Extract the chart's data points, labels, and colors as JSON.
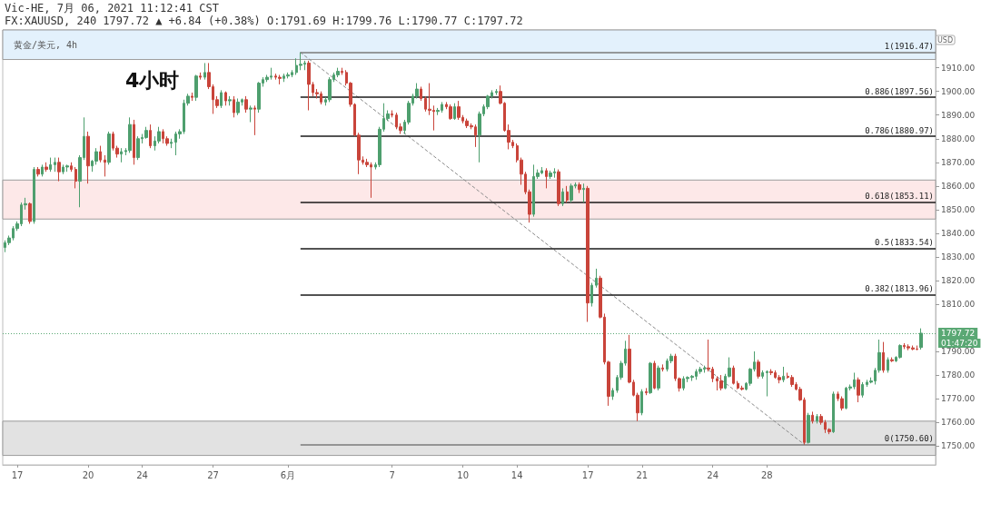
{
  "chart_data": {
    "type": "candlestick",
    "title": "4小时",
    "subtitle": "黄金/美元, 4h",
    "annotations": [
      "Vic-HE, 7月 06, 2021 11:12:41 CST",
      "FX:XAUUSD, 240 1797.72 ▲ +6.84 (+0.38%) O:1791.69 H:1799.76 L:1790.77 C:1797.72",
      "01:47:20"
    ],
    "categories": [
      null,
      null,
      null,
      "17",
      null,
      null,
      null,
      null,
      null,
      null,
      null,
      null,
      null,
      null,
      null,
      null,
      null,
      null,
      null,
      null,
      "20",
      null,
      null,
      null,
      null,
      null,
      null,
      null,
      null,
      null,
      null,
      null,
      null,
      "24",
      null,
      null,
      null,
      null,
      null,
      null,
      null,
      null,
      null,
      null,
      null,
      null,
      null,
      null,
      null,
      null,
      "27",
      null,
      null,
      null,
      null,
      null,
      null,
      null,
      null,
      null,
      null,
      null,
      null,
      null,
      null,
      null,
      null,
      null,
      "6月",
      null,
      null,
      null,
      null,
      null,
      null,
      null,
      null,
      null,
      null,
      null,
      null,
      null,
      null,
      null,
      null,
      null,
      null,
      null,
      null,
      null,
      null,
      null,
      null,
      "7",
      null,
      null,
      null,
      null,
      null,
      null,
      null,
      null,
      null,
      null,
      null,
      null,
      null,
      null,
      null,
      null,
      "10",
      null,
      null,
      null,
      null,
      null,
      null,
      null,
      null,
      null,
      null,
      null,
      null,
      "14",
      null,
      null,
      null,
      null,
      null,
      null,
      null,
      null,
      null,
      null,
      null,
      null,
      null,
      null,
      null,
      null,
      "17",
      null,
      null,
      null,
      null,
      null,
      null,
      null,
      null,
      null,
      null,
      null,
      null,
      "21",
      null,
      null,
      null,
      null,
      null,
      null,
      null,
      null,
      null,
      null,
      null,
      null,
      null,
      null,
      null,
      null,
      "24",
      null,
      null,
      null,
      null,
      null,
      null,
      null,
      null,
      null,
      null,
      null,
      null,
      "28",
      null,
      null,
      null,
      null,
      null,
      null,
      null,
      null,
      null,
      null,
      null,
      null,
      null,
      null,
      null,
      null,
      null,
      null,
      null,
      null,
      null,
      null,
      null,
      null,
      null,
      null,
      null,
      null,
      null,
      null,
      null,
      null,
      null,
      null,
      null,
      null,
      null
    ],
    "series": [
      {
        "type": "candlestick",
        "colors": [
          "#4e9f6e",
          "#4e9f6e",
          "#4e9f6e",
          "#4e9f6e",
          "#4e9f6e",
          "#4e9f6e",
          "#c9443a",
          "#4e9f6e",
          "#c9443a",
          "#4e9f6e",
          "#c9443a",
          "#4e9f6e",
          "#4e9f6e",
          "#c9443a",
          "#4e9f6e",
          "#4e9f6e",
          "#c9443a",
          "#c9443a",
          "#4e9f6e",
          "#4e9f6e",
          "#c9443a",
          "#4e9f6e",
          "#4e9f6e",
          "#c9443a",
          "#c9443a",
          "#4e9f6e",
          "#c9443a",
          "#c9443a",
          "#4e9f6e",
          "#4e9f6e",
          "#4e9f6e",
          "#c9443a",
          "#4e9f6e",
          "#4e9f6e",
          "#4e9f6e",
          "#c9443a",
          "#4e9f6e",
          "#4e9f6e",
          "#c9443a",
          "#c9443a",
          "#4e9f6e",
          "#4e9f6e",
          "#4e9f6e",
          "#4e9f6e",
          "#4e9f6e",
          "#c9443a",
          "#4e9f6e",
          "#c9443a",
          "#4e9f6e",
          "#c9443a",
          "#c9443a",
          "#c9443a",
          "#4e9f6e",
          "#c9443a",
          "#4e9f6e",
          "#c9443a",
          "#4e9f6e",
          "#4e9f6e",
          "#c9443a",
          "#4e9f6e",
          "#c9443a",
          "#4e9f6e",
          "#4e9f6e",
          "#4e9f6e",
          "#4e9f6e",
          "#c9443a",
          "#c9443a",
          "#4e9f6e",
          "#4e9f6e",
          "#4e9f6e",
          "#4e9f6e",
          "#4e9f6e",
          "#4e9f6e",
          "#c9443a",
          "#c9443a",
          "#c9443a",
          "#c9443a",
          "#4e9f6e",
          "#4e9f6e",
          "#4e9f6e",
          "#4e9f6e",
          "#c9443a",
          "#c9443a",
          "#c9443a",
          "#c9443a",
          "#c9443a",
          "#c9443a",
          "#c9443a",
          "#c9443a",
          "#4e9f6e",
          "#4e9f6e",
          "#4e9f6e",
          "#4e9f6e",
          "#c9443a",
          "#c9443a",
          "#c9443a",
          "#4e9f6e",
          "#4e9f6e",
          "#4e9f6e",
          "#4e9f6e",
          "#c9443a",
          "#c9443a",
          "#c9443a",
          "#c9443a",
          "#4e9f6e",
          "#4e9f6e",
          "#c9443a",
          "#c9443a",
          "#4e9f6e",
          "#c9443a",
          "#c9443a",
          "#c9443a",
          "#c9443a",
          "#c9443a",
          "#4e9f6e",
          "#4e9f6e",
          "#4e9f6e",
          "#4e9f6e",
          "#4e9f6e",
          "#c9443a",
          "#c9443a",
          "#c9443a",
          "#c9443a",
          "#c9443a",
          "#c9443a",
          "#c9443a",
          "#c9443a",
          "#4e9f6e",
          "#4e9f6e",
          "#4e9f6e",
          "#c9443a",
          "#4e9f6e",
          "#4e9f6e",
          "#c9443a",
          "#4e9f6e",
          "#c9443a",
          "#4e9f6e",
          "#4e9f6e",
          "#c9443a",
          "#4e9f6e",
          "#c9443a",
          "#4e9f6e",
          "#4e9f6e",
          "#c9443a",
          "#c9443a",
          "#c9443a",
          "#4e9f6e",
          "#4e9f6e",
          "#4e9f6e",
          "#4e9f6e",
          "#c9443a",
          "#c9443a",
          "#c9443a",
          "#4e9f6e",
          "#c9443a",
          "#4e9f6e",
          "#c9443a",
          "#4e9f6e",
          "#c9443a",
          "#4e9f6e",
          "#4e9f6e",
          "#c9443a",
          "#c9443a",
          "#4e9f6e",
          "#4e9f6e",
          "#4e9f6e",
          "#4e9f6e",
          "#4e9f6e",
          "#4e9f6e",
          "#c9443a",
          "#c9443a",
          "#c9443a",
          "#c9443a",
          "#4e9f6e",
          "#4e9f6e",
          "#c9443a",
          "#c9443a",
          "#c9443a",
          "#4e9f6e",
          "#4e9f6e",
          "#4e9f6e",
          "#c9443a",
          "#4e9f6e",
          "#4e9f6e",
          "#c9443a",
          "#c9443a",
          "#c9443a",
          "#4e9f6e",
          "#c9443a",
          "#c9443a",
          "#c9443a",
          "#c9443a",
          "#c9443a",
          "#4e9f6e",
          "#c9443a",
          "#4e9f6e",
          "#c9443a",
          "#c9443a",
          "#c9443a",
          "#4e9f6e",
          "#c9443a",
          "#c9443a",
          "#4e9f6e",
          "#4e9f6e",
          "#4e9f6e",
          "#c9443a",
          "#4e9f6e",
          "#4e9f6e",
          "#4e9f6e",
          "#4e9f6e",
          "#4e9f6e",
          "#c9443a",
          "#4e9f6e",
          "#c9443a",
          "#4e9f6e",
          "#4e9f6e",
          "#c9443a",
          "#c9443a",
          "#c9443a",
          "#c9443a",
          "#4e9f6e"
        ],
        "ohlc": [
          [
            1834,
            1837,
            1832,
            1836
          ],
          [
            1836,
            1839,
            1835,
            1838
          ],
          [
            1838,
            1843,
            1837,
            1842
          ],
          [
            1842,
            1845,
            1841,
            1844
          ],
          [
            1844,
            1853,
            1843,
            1852
          ],
          [
            1852,
            1855,
            1850,
            1852.5
          ],
          [
            1852.5,
            1853,
            1844,
            1845
          ],
          [
            1845,
            1868,
            1844,
            1867
          ],
          [
            1867,
            1868,
            1864,
            1865
          ],
          [
            1865,
            1869,
            1864,
            1868
          ],
          [
            1868,
            1870,
            1866,
            1867
          ],
          [
            1867,
            1872,
            1866,
            1869
          ],
          [
            1869,
            1872,
            1866,
            1870
          ],
          [
            1870,
            1872,
            1862,
            1866
          ],
          [
            1866,
            1869,
            1865,
            1868
          ],
          [
            1868,
            1869,
            1866,
            1868.5
          ],
          [
            1868.5,
            1870,
            1866,
            1867
          ],
          [
            1867,
            1868,
            1859,
            1862
          ],
          [
            1862,
            1873,
            1851,
            1872
          ],
          [
            1872,
            1889,
            1871,
            1881
          ],
          [
            1881,
            1883,
            1861,
            1868.5
          ],
          [
            1868.5,
            1871,
            1866,
            1870.5
          ],
          [
            1870.5,
            1876,
            1869,
            1874.5
          ],
          [
            1874.5,
            1877,
            1870,
            1871
          ],
          [
            1871,
            1873,
            1864,
            1870
          ],
          [
            1870,
            1883,
            1869,
            1882
          ],
          [
            1882,
            1883,
            1875,
            1876
          ],
          [
            1876,
            1877,
            1872,
            1873.5
          ],
          [
            1873.5,
            1876,
            1870,
            1874.5
          ],
          [
            1874.5,
            1876,
            1873,
            1875
          ],
          [
            1875,
            1889,
            1874,
            1886
          ],
          [
            1886,
            1888,
            1869,
            1872
          ],
          [
            1872,
            1881,
            1871,
            1880
          ],
          [
            1880,
            1882,
            1878,
            1880.5
          ],
          [
            1880.5,
            1885,
            1880,
            1883.5
          ],
          [
            1883.5,
            1886,
            1876,
            1877
          ],
          [
            1877,
            1881,
            1875,
            1879
          ],
          [
            1879,
            1885,
            1878,
            1883
          ],
          [
            1883,
            1884,
            1878,
            1880
          ],
          [
            1880,
            1881,
            1877,
            1878
          ],
          [
            1878,
            1880,
            1876,
            1878.5
          ],
          [
            1878.5,
            1883,
            1873,
            1882
          ],
          [
            1882,
            1884,
            1880,
            1883
          ],
          [
            1883,
            1896.5,
            1882,
            1895
          ],
          [
            1895,
            1899,
            1894,
            1898
          ],
          [
            1898,
            1899.5,
            1896,
            1897.5
          ],
          [
            1897.5,
            1907,
            1896,
            1906.5
          ],
          [
            1906.5,
            1908,
            1905,
            1906
          ],
          [
            1906,
            1912,
            1905,
            1908
          ],
          [
            1908,
            1912,
            1901,
            1902
          ],
          [
            1902,
            1903,
            1890.5,
            1896.5
          ],
          [
            1896.5,
            1898,
            1893,
            1894
          ],
          [
            1894,
            1900.5,
            1893,
            1899.5
          ],
          [
            1899.5,
            1900,
            1894,
            1896
          ],
          [
            1896,
            1898,
            1894,
            1896.5
          ],
          [
            1896.5,
            1898,
            1889,
            1891
          ],
          [
            1891,
            1897,
            1890,
            1895.5
          ],
          [
            1895.5,
            1897,
            1894,
            1896.5
          ],
          [
            1896.5,
            1898,
            1891,
            1892.5
          ],
          [
            1892.5,
            1894,
            1887,
            1893
          ],
          [
            1893,
            1894,
            1881.5,
            1892.5
          ],
          [
            1892.5,
            1904,
            1891,
            1903.5
          ],
          [
            1903.5,
            1906,
            1902,
            1905
          ],
          [
            1905,
            1907,
            1904,
            1906
          ],
          [
            1906,
            1910,
            1905,
            1906.5
          ],
          [
            1906.5,
            1907.5,
            1905,
            1906
          ],
          [
            1906,
            1907,
            1903,
            1905.5
          ],
          [
            1905.5,
            1907.5,
            1904,
            1906.5
          ],
          [
            1906.5,
            1908,
            1905.5,
            1907
          ],
          [
            1907,
            1909,
            1906,
            1908
          ],
          [
            1908,
            1914,
            1907,
            1911
          ],
          [
            1911,
            1916.47,
            1909,
            1911.5
          ],
          [
            1911.5,
            1913,
            1909,
            1912
          ],
          [
            1912,
            1913,
            1892,
            1903
          ],
          [
            1903,
            1904,
            1898,
            1899.5
          ],
          [
            1899.5,
            1901,
            1897,
            1899
          ],
          [
            1899,
            1900,
            1894.5,
            1895.5
          ],
          [
            1895.5,
            1897.5,
            1894,
            1896.5
          ],
          [
            1896.5,
            1906,
            1895.5,
            1905
          ],
          [
            1905,
            1908,
            1904,
            1907
          ],
          [
            1907,
            1910,
            1906,
            1908.5
          ],
          [
            1908.5,
            1910,
            1907,
            1908
          ],
          [
            1908,
            1909,
            1902.5,
            1903.5
          ],
          [
            1903.5,
            1904,
            1893.5,
            1894.5
          ],
          [
            1894.5,
            1895,
            1881,
            1881.5
          ],
          [
            1881.5,
            1882.5,
            1865,
            1871
          ],
          [
            1871,
            1872.5,
            1869,
            1870
          ],
          [
            1870,
            1871.5,
            1868,
            1869
          ],
          [
            1869,
            1870,
            1855,
            1868
          ],
          [
            1868,
            1870,
            1867,
            1869
          ],
          [
            1869,
            1885,
            1868,
            1884
          ],
          [
            1884,
            1895,
            1883,
            1888.5
          ],
          [
            1888.5,
            1892,
            1887.5,
            1890.5
          ],
          [
            1890.5,
            1892,
            1889,
            1890
          ],
          [
            1890,
            1891,
            1884,
            1885
          ],
          [
            1885,
            1886.5,
            1882,
            1883.5
          ],
          [
            1883.5,
            1888,
            1882,
            1887
          ],
          [
            1887,
            1896,
            1886,
            1895
          ],
          [
            1895,
            1899,
            1894,
            1898
          ],
          [
            1898,
            1903.5,
            1897,
            1901
          ],
          [
            1901,
            1902,
            1896,
            1897
          ],
          [
            1897,
            1898,
            1891.5,
            1892.5
          ],
          [
            1892.5,
            1903.5,
            1890,
            1892
          ],
          [
            1892,
            1894,
            1883.5,
            1891.5
          ],
          [
            1891.5,
            1893,
            1890,
            1892
          ],
          [
            1892,
            1895.5,
            1891,
            1894.5
          ],
          [
            1894.5,
            1895.5,
            1892.5,
            1893.5
          ],
          [
            1893.5,
            1894.5,
            1888,
            1888.5
          ],
          [
            1888.5,
            1895,
            1888,
            1893.5
          ],
          [
            1893.5,
            1896,
            1888,
            1889
          ],
          [
            1889,
            1890,
            1886.5,
            1887.5
          ],
          [
            1887.5,
            1888.5,
            1884.5,
            1885.5
          ],
          [
            1885.5,
            1886.5,
            1884,
            1885
          ],
          [
            1885,
            1886,
            1876.5,
            1881.5
          ],
          [
            1881.5,
            1891.5,
            1870,
            1890.5
          ],
          [
            1890.5,
            1894.5,
            1889.5,
            1893.5
          ],
          [
            1893.5,
            1898.5,
            1892.5,
            1898
          ],
          [
            1898,
            1900.5,
            1897,
            1899.5
          ],
          [
            1899.5,
            1901,
            1898.5,
            1900
          ],
          [
            1900,
            1902.5,
            1894.5,
            1895
          ],
          [
            1895,
            1895.5,
            1883,
            1883.5
          ],
          [
            1883.5,
            1886,
            1875.5,
            1878.5
          ],
          [
            1878.5,
            1879.5,
            1876,
            1877
          ],
          [
            1877,
            1878,
            1870,
            1871
          ],
          [
            1871,
            1872,
            1860.5,
            1865
          ],
          [
            1865,
            1866,
            1856.5,
            1857.5
          ],
          [
            1857.5,
            1858.5,
            1844.5,
            1848
          ],
          [
            1848,
            1869,
            1847,
            1864
          ],
          [
            1864,
            1867,
            1863,
            1865.5
          ],
          [
            1865.5,
            1868,
            1865,
            1866.5
          ],
          [
            1866.5,
            1867.5,
            1859,
            1864
          ],
          [
            1864,
            1866.5,
            1863,
            1865.5
          ],
          [
            1865.5,
            1867.5,
            1863.5,
            1866
          ],
          [
            1866,
            1867,
            1851.5,
            1852.5
          ],
          [
            1852.5,
            1859,
            1851.5,
            1857.5
          ],
          [
            1857.5,
            1860,
            1853,
            1854
          ],
          [
            1854,
            1861,
            1853,
            1860
          ],
          [
            1860,
            1861.5,
            1859,
            1860.5
          ],
          [
            1860.5,
            1861.5,
            1857,
            1858.5
          ],
          [
            1858.5,
            1861,
            1853,
            1859
          ],
          [
            1859,
            1860,
            1802.5,
            1810.5
          ],
          [
            1810.5,
            1819,
            1809,
            1818
          ],
          [
            1818,
            1825,
            1817,
            1821
          ],
          [
            1821,
            1822,
            1804,
            1804.5
          ],
          [
            1804.5,
            1806,
            1784.5,
            1785.5
          ],
          [
            1785.5,
            1786,
            1767,
            1771
          ],
          [
            1771,
            1774.5,
            1769.5,
            1773.5
          ],
          [
            1773.5,
            1780,
            1772.5,
            1779
          ],
          [
            1779,
            1786,
            1778,
            1785
          ],
          [
            1785,
            1794.5,
            1784,
            1791
          ],
          [
            1791,
            1797,
            1776.5,
            1777
          ],
          [
            1777,
            1778,
            1771,
            1771.5
          ],
          [
            1771.5,
            1772.5,
            1760.5,
            1764
          ],
          [
            1764,
            1774,
            1763,
            1773
          ],
          [
            1773,
            1774.5,
            1771.5,
            1772.5
          ],
          [
            1772.5,
            1785.5,
            1772,
            1785
          ],
          [
            1785,
            1786,
            1774,
            1774.5
          ],
          [
            1774.5,
            1784,
            1773.5,
            1783
          ],
          [
            1783,
            1784.5,
            1781.5,
            1782.5
          ],
          [
            1782.5,
            1787,
            1781.5,
            1786
          ],
          [
            1786,
            1789,
            1785,
            1788
          ],
          [
            1788,
            1789,
            1777.5,
            1778.5
          ],
          [
            1778.5,
            1779,
            1773,
            1774.5
          ],
          [
            1774.5,
            1779.5,
            1773.5,
            1778.5
          ],
          [
            1778.5,
            1779.5,
            1777,
            1779
          ],
          [
            1779,
            1780,
            1777.5,
            1779.5
          ],
          [
            1779.5,
            1782.5,
            1778,
            1781.5
          ],
          [
            1781.5,
            1783.5,
            1780.5,
            1782.5
          ],
          [
            1782.5,
            1784,
            1781,
            1783
          ],
          [
            1783,
            1795,
            1781.5,
            1782.5
          ],
          [
            1782.5,
            1783.5,
            1777,
            1778.5
          ],
          [
            1778.5,
            1779.5,
            1773.5,
            1777.5
          ],
          [
            1777.5,
            1780,
            1773.5,
            1774.5
          ],
          [
            1774.5,
            1780.5,
            1774,
            1779.5
          ],
          [
            1779.5,
            1787.5,
            1779,
            1783
          ],
          [
            1783,
            1784,
            1776,
            1776.5
          ],
          [
            1776.5,
            1777.5,
            1774,
            1774.5
          ],
          [
            1774.5,
            1775.5,
            1773.5,
            1774
          ],
          [
            1774,
            1777,
            1773.5,
            1776.5
          ],
          [
            1776.5,
            1783,
            1775.5,
            1782.5
          ],
          [
            1782.5,
            1790,
            1781.5,
            1785.5
          ],
          [
            1785.5,
            1786.5,
            1778.5,
            1779.5
          ],
          [
            1779.5,
            1782,
            1778.5,
            1781
          ],
          [
            1781,
            1782,
            1771,
            1781.5
          ],
          [
            1781.5,
            1782.5,
            1780,
            1781
          ],
          [
            1781,
            1782,
            1778.5,
            1779
          ],
          [
            1779,
            1780,
            1776.5,
            1778
          ],
          [
            1778,
            1783.5,
            1777,
            1779.5
          ],
          [
            1779.5,
            1781,
            1778.5,
            1779
          ],
          [
            1779,
            1780,
            1775,
            1776
          ],
          [
            1776,
            1777,
            1773.5,
            1774
          ],
          [
            1774,
            1775,
            1769,
            1769.5
          ],
          [
            1769.5,
            1770.5,
            1750.6,
            1751.5
          ],
          [
            1751.5,
            1764,
            1751,
            1763
          ],
          [
            1763,
            1764.5,
            1759.5,
            1760.5
          ],
          [
            1760.5,
            1763.5,
            1759.5,
            1762.5
          ],
          [
            1762.5,
            1763.5,
            1759,
            1760
          ],
          [
            1760,
            1761,
            1755.5,
            1757
          ],
          [
            1757,
            1757.5,
            1755,
            1756
          ],
          [
            1756,
            1773,
            1755.5,
            1772
          ],
          [
            1772,
            1773,
            1769,
            1770
          ],
          [
            1770,
            1771,
            1765,
            1766
          ],
          [
            1766,
            1775,
            1765.5,
            1774.5
          ],
          [
            1774.5,
            1776,
            1773.5,
            1775
          ],
          [
            1775,
            1781,
            1774,
            1778
          ],
          [
            1778,
            1779,
            1768.5,
            1771.5
          ],
          [
            1771.5,
            1777,
            1770.5,
            1776
          ],
          [
            1776,
            1778,
            1775,
            1777
          ],
          [
            1777,
            1779,
            1776.5,
            1777.5
          ],
          [
            1777.5,
            1783,
            1776,
            1782
          ],
          [
            1782,
            1795,
            1781,
            1789.5
          ],
          [
            1789.5,
            1794,
            1781,
            1782
          ],
          [
            1782,
            1787.5,
            1781,
            1786.5
          ],
          [
            1786.5,
            1787.5,
            1785.5,
            1786
          ],
          [
            1786,
            1788,
            1785.5,
            1787.5
          ],
          [
            1787.5,
            1793,
            1787,
            1792.5
          ],
          [
            1792.5,
            1793.5,
            1791,
            1792
          ],
          [
            1792,
            1793,
            1790.5,
            1791.5
          ],
          [
            1791.5,
            1792.5,
            1790.5,
            1791
          ],
          [
            1791,
            1792.5,
            1790.5,
            1790.9
          ],
          [
            1791.69,
            1799.76,
            1790.77,
            1797.72
          ]
        ]
      },
      {
        "type": "line",
        "color": "#8a8a8a",
        "line_style": "dashed",
        "marker": "none",
        "values": [
          null,
          null,
          null,
          null,
          null,
          null,
          null,
          null,
          null,
          null,
          null,
          null,
          null,
          null,
          null,
          null,
          null,
          null,
          null,
          null,
          null,
          null,
          null,
          null,
          null,
          null,
          null,
          null,
          null,
          null,
          null,
          null,
          null,
          null,
          null,
          null,
          null,
          null,
          null,
          null,
          null,
          null,
          null,
          null,
          null,
          null,
          null,
          null,
          null,
          null,
          null,
          null,
          null,
          null,
          null,
          null,
          null,
          null,
          null,
          null,
          null,
          null,
          null,
          null,
          null,
          null,
          null,
          null,
          null,
          null,
          null,
          1916.5,
          null,
          null,
          null,
          null,
          null,
          null,
          null,
          null,
          null,
          null,
          null,
          null,
          null,
          null,
          null,
          null,
          null,
          null,
          null,
          null,
          null,
          null,
          null,
          null,
          null,
          null,
          null,
          null,
          null,
          null,
          null,
          null,
          null,
          null,
          null,
          null,
          null,
          null,
          null,
          null,
          null,
          null,
          null,
          null,
          null,
          null,
          null,
          null,
          null,
          null,
          null,
          null,
          null,
          null,
          null,
          null,
          null,
          null,
          null,
          null,
          null,
          null,
          null,
          null,
          null,
          null,
          null,
          null,
          null,
          null,
          null,
          null,
          null,
          null,
          null,
          null,
          null,
          null,
          null,
          null,
          null,
          null,
          null,
          null,
          null,
          null,
          null,
          null,
          null,
          null,
          null,
          null,
          null,
          null,
          null,
          null,
          null,
          null,
          null,
          null,
          null,
          null,
          null,
          null,
          null,
          null,
          null,
          null,
          null,
          null,
          null,
          null,
          null,
          null,
          null,
          null,
          null,
          null,
          null,
          null,
          1750.6,
          null,
          null,
          null,
          null,
          null,
          null,
          null,
          null,
          null,
          null,
          null,
          null,
          null,
          null,
          null,
          null,
          null,
          null,
          null,
          null,
          null,
          null,
          null,
          null,
          null,
          null,
          null,
          null
        ]
      }
    ],
    "ylabel": "USD",
    "ylim": [
      1742,
      1926
    ],
    "yticks": [
      {
        "value": 1750,
        "label": "1750.00"
      },
      {
        "value": 1760,
        "label": "1760.00"
      },
      {
        "value": 1770,
        "label": "1770.00"
      },
      {
        "value": 1780,
        "label": "1780.00"
      },
      {
        "value": 1790,
        "label": "1790.00"
      },
      {
        "value": 1810,
        "label": "1810.00"
      },
      {
        "value": 1820,
        "label": "1820.00"
      },
      {
        "value": 1830,
        "label": "1830.00"
      },
      {
        "value": 1840,
        "label": "1840.00"
      },
      {
        "value": 1850,
        "label": "1850.00"
      },
      {
        "value": 1860,
        "label": "1860.00"
      },
      {
        "value": 1870,
        "label": "1870.00"
      },
      {
        "value": 1880,
        "label": "1880.00"
      },
      {
        "value": 1890,
        "label": "1890.00"
      },
      {
        "value": 1900,
        "label": "1900.00"
      },
      {
        "value": 1910,
        "label": "1910.00"
      }
    ],
    "ref_lines": [
      {
        "axis": "y",
        "value": 1916.47,
        "label": "1(1916.47)",
        "color": "#7a7a7a"
      },
      {
        "axis": "y",
        "value": 1897.56,
        "label": "0.886(1897.56)",
        "color": "#1a1a1a"
      },
      {
        "axis": "y",
        "value": 1880.97,
        "label": "0.786(1880.97)",
        "color": "#1a1a1a"
      },
      {
        "axis": "y",
        "value": 1853.11,
        "label": "0.618(1853.11)",
        "color": "#1a1a1a"
      },
      {
        "axis": "y",
        "value": 1833.54,
        "label": "0.5(1833.54)",
        "color": "#1a1a1a"
      },
      {
        "axis": "y",
        "value": 1813.96,
        "label": "0.382(1813.96)",
        "color": "#1a1a1a"
      },
      {
        "axis": "y",
        "value": 1750.6,
        "label": "0(1750.60)",
        "color": "#7a7a7a"
      },
      {
        "axis": "y",
        "value": 1797.72,
        "label": "1797.72",
        "color": "#5aa874",
        "line_style": "dotted"
      }
    ],
    "bands": [
      {
        "axis": "y",
        "from": 1913.5,
        "to": 1926,
        "color": "#e3f1fc"
      },
      {
        "axis": "y",
        "from": 1846,
        "to": 1862.5,
        "color": "#fde8e8"
      },
      {
        "axis": "y",
        "from": 1746,
        "to": 1760.5,
        "color": "#e2e2e2"
      }
    ]
  }
}
